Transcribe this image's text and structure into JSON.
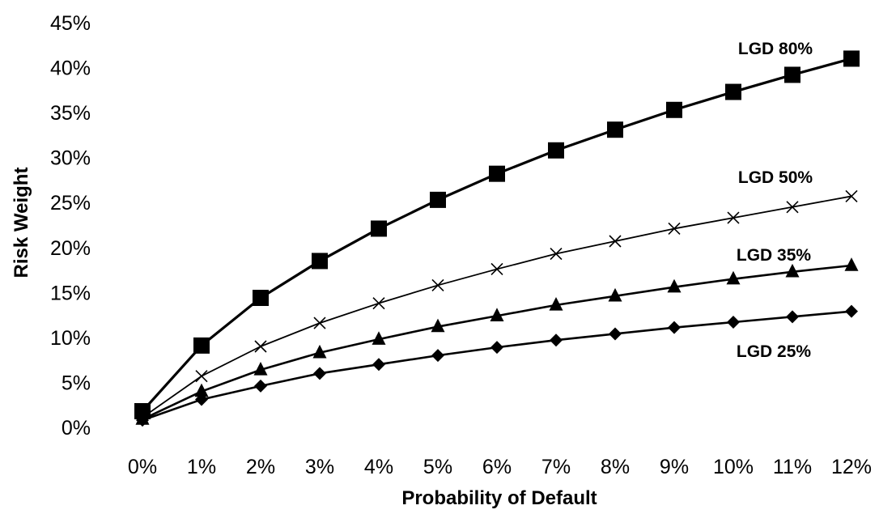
{
  "chart_data": {
    "type": "line",
    "title": "",
    "xlabel": "Probability of Default",
    "ylabel": "Risk Weight",
    "x": [
      0,
      1,
      2,
      3,
      4,
      5,
      6,
      7,
      8,
      9,
      10,
      11,
      12
    ],
    "x_tick_labels": [
      "0%",
      "1%",
      "2%",
      "3%",
      "4%",
      "5%",
      "6%",
      "7%",
      "8%",
      "9%",
      "10%",
      "11%",
      "12%"
    ],
    "y_tick_values": [
      0,
      5,
      10,
      15,
      20,
      25,
      30,
      35,
      40,
      45
    ],
    "y_tick_labels": [
      "0%",
      "5%",
      "10%",
      "15%",
      "20%",
      "25%",
      "30%",
      "35%",
      "40%",
      "45%"
    ],
    "xlim": [
      0,
      12
    ],
    "ylim": [
      0,
      45
    ],
    "grid": false,
    "legend": "none (series labeled directly on chart)",
    "series": [
      {
        "name": "LGD 80%",
        "marker": "square",
        "values": [
          1.8,
          9.1,
          14.4,
          18.5,
          22.1,
          25.3,
          28.2,
          30.8,
          33.1,
          35.3,
          37.3,
          39.2,
          41.0
        ]
      },
      {
        "name": "LGD 50%",
        "marker": "x",
        "values": [
          1.1,
          5.7,
          9.0,
          11.6,
          13.8,
          15.8,
          17.6,
          19.3,
          20.7,
          22.1,
          23.3,
          24.5,
          25.7
        ]
      },
      {
        "name": "LGD 35%",
        "marker": "triangle",
        "values": [
          0.9,
          4.0,
          6.4,
          8.3,
          9.8,
          11.2,
          12.4,
          13.6,
          14.6,
          15.6,
          16.5,
          17.3,
          18.0
        ]
      },
      {
        "name": "LGD 25%",
        "marker": "diamond",
        "values": [
          0.8,
          3.1,
          4.6,
          6.0,
          7.0,
          8.0,
          8.9,
          9.7,
          10.4,
          11.1,
          11.7,
          12.3,
          12.9
        ]
      }
    ]
  }
}
